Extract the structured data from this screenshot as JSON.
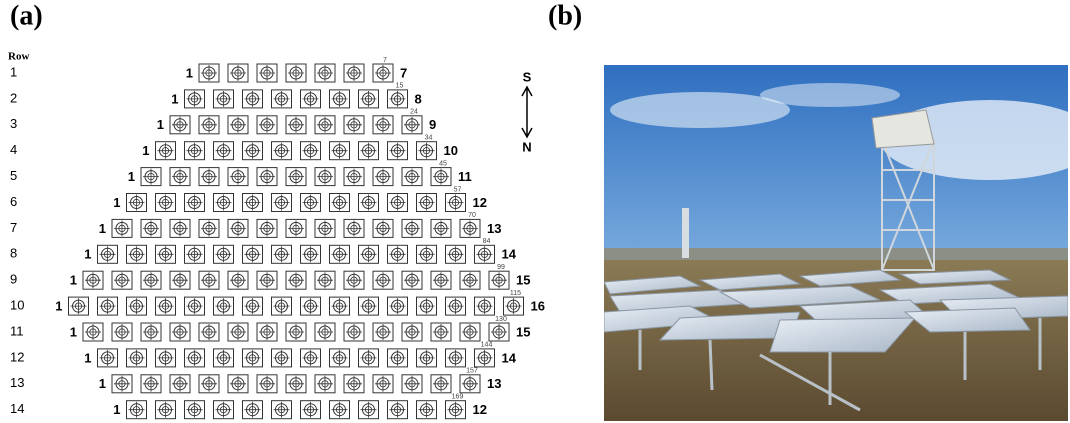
{
  "panel_a": {
    "label": "(a)",
    "row_header": "Row",
    "rows": [
      {
        "row": 1,
        "first": 1,
        "count": 7,
        "index": 7
      },
      {
        "row": 2,
        "first": 1,
        "count": 8,
        "index": 15
      },
      {
        "row": 3,
        "first": 1,
        "count": 9,
        "index": 24
      },
      {
        "row": 4,
        "first": 1,
        "count": 10,
        "index": 34
      },
      {
        "row": 5,
        "first": 1,
        "count": 11,
        "index": 45
      },
      {
        "row": 6,
        "first": 1,
        "count": 12,
        "index": 57
      },
      {
        "row": 7,
        "first": 1,
        "count": 13,
        "index": 70
      },
      {
        "row": 8,
        "first": 1,
        "count": 14,
        "index": 84
      },
      {
        "row": 9,
        "first": 1,
        "count": 15,
        "index": 99
      },
      {
        "row": 10,
        "first": 1,
        "count": 16,
        "index": 115
      },
      {
        "row": 11,
        "first": 1,
        "count": 15,
        "index": 130
      },
      {
        "row": 12,
        "first": 1,
        "count": 14,
        "index": 144
      },
      {
        "row": 13,
        "first": 1,
        "count": 13,
        "index": 157
      },
      {
        "row": 14,
        "first": 1,
        "count": 12,
        "index": 169
      }
    ],
    "compass": {
      "south": "S",
      "north": "N"
    }
  },
  "panel_b": {
    "label": "(b)"
  }
}
